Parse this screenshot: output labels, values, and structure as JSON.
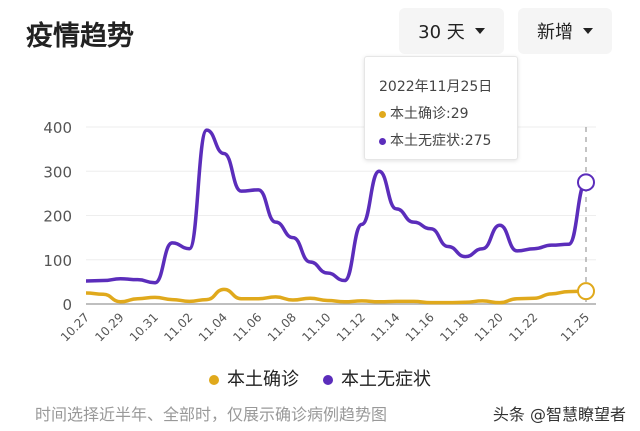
{
  "header": {
    "title": "疫情趋势",
    "range_label": "30 天",
    "mode_label": "新增"
  },
  "tooltip": {
    "date": "2022年11月25日",
    "confirmed": "本土确诊:29",
    "asymptomatic": "本土无症状:275"
  },
  "legend": [
    "本土确诊",
    "本土无症状"
  ],
  "note": "时间选择近半年、全部时，仅展示确诊病例趋势图",
  "watermark": "头条 @智慧瞭望者",
  "colors": {
    "confirmed": "#e0a91c",
    "asymptomatic": "#5b2dbb"
  },
  "chart_data": {
    "type": "line",
    "x": [
      "10.27",
      "10.28",
      "10.29",
      "10.30",
      "10.31",
      "11.01",
      "11.02",
      "11.03",
      "11.04",
      "11.05",
      "11.06",
      "11.07",
      "11.08",
      "11.09",
      "11.10",
      "11.11",
      "11.12",
      "11.13",
      "11.14",
      "11.15",
      "11.16",
      "11.17",
      "11.18",
      "11.19",
      "11.20",
      "11.21",
      "11.22",
      "11.23",
      "11.24",
      "11.25"
    ],
    "x_tick_labels": [
      "10.27",
      "10.29",
      "10.31",
      "11.02",
      "11.04",
      "11.06",
      "11.08",
      "11.10",
      "11.12",
      "11.14",
      "11.16",
      "11.18",
      "11.20",
      "11.22",
      "11.25"
    ],
    "y_ticks": [
      0,
      100,
      200,
      300,
      400
    ],
    "ylim": [
      0,
      400
    ],
    "grid": true,
    "legend_position": "bottom",
    "series": [
      {
        "name": "本土确诊",
        "values": [
          25,
          22,
          5,
          12,
          15,
          10,
          6,
          10,
          33,
          12,
          12,
          16,
          9,
          13,
          8,
          5,
          7,
          5,
          6,
          6,
          3,
          3,
          4,
          7,
          3,
          12,
          13,
          23,
          28,
          29
        ]
      },
      {
        "name": "本土无症状",
        "values": [
          52,
          53,
          57,
          55,
          48,
          138,
          125,
          393,
          340,
          255,
          258,
          185,
          150,
          95,
          70,
          53,
          180,
          300,
          215,
          185,
          170,
          130,
          107,
          125,
          178,
          120,
          125,
          133,
          135,
          275
        ]
      }
    ]
  }
}
